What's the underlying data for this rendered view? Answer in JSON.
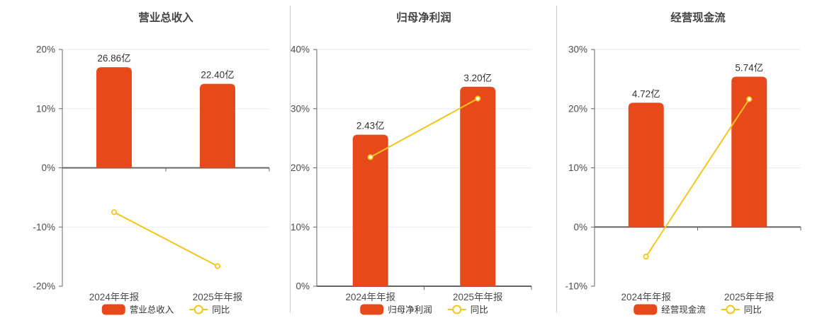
{
  "style": {
    "bar_color": "#E7491B",
    "line_color": "#F5C51D",
    "marker_fill": "#FFFFFF",
    "grid_color": "#E5EAF3",
    "axis_color": "#666666",
    "divider_color": "#CCCCCC",
    "title_color": "#444444",
    "tick_label_color": "#4D4D4D",
    "value_label_color": "#333333",
    "legend_text_color": "#333333",
    "background": "#FFFFFF"
  },
  "chart_data": [
    {
      "type": "combo",
      "title": "营业总收入",
      "categories": [
        "2024年年报",
        "2025年年报"
      ],
      "series": [
        {
          "name": "营业总收入",
          "type": "bar",
          "unit": "亿",
          "values": [
            26.86,
            22.4
          ],
          "labels": [
            "26.86亿",
            "22.40亿"
          ],
          "bar_display_pct": [
            17.0,
            14.2
          ]
        },
        {
          "name": "同比",
          "type": "line",
          "unit": "%",
          "values": [
            -7.5,
            -16.6
          ]
        }
      ],
      "ylim": [
        -20,
        20
      ],
      "ytick_step": 10,
      "ytick_labels": [
        "-20%",
        "-10%",
        "0%",
        "10%",
        "20%"
      ],
      "grid": true,
      "legend_position": "bottom"
    },
    {
      "type": "combo",
      "title": "归母净利润",
      "categories": [
        "2024年年报",
        "2025年年报"
      ],
      "series": [
        {
          "name": "归母净利润",
          "type": "bar",
          "unit": "亿",
          "values": [
            2.43,
            3.2
          ],
          "labels": [
            "2.43亿",
            "3.20亿"
          ],
          "bar_display_pct": [
            25.6,
            33.7
          ]
        },
        {
          "name": "同比",
          "type": "line",
          "unit": "%",
          "values": [
            21.8,
            31.7
          ]
        }
      ],
      "ylim": [
        0,
        40
      ],
      "ytick_step": 10,
      "ytick_labels": [
        "0%",
        "10%",
        "20%",
        "30%",
        "40%"
      ],
      "grid": true,
      "legend_position": "bottom"
    },
    {
      "type": "combo",
      "title": "经营现金流",
      "categories": [
        "2024年年报",
        "2025年年报"
      ],
      "series": [
        {
          "name": "经营现金流",
          "type": "bar",
          "unit": "亿",
          "values": [
            4.72,
            5.74
          ],
          "labels": [
            "4.72亿",
            "5.74亿"
          ],
          "bar_display_pct": [
            21.0,
            25.4
          ]
        },
        {
          "name": "同比",
          "type": "line",
          "unit": "%",
          "values": [
            -5.0,
            21.6
          ]
        }
      ],
      "ylim": [
        -10,
        30
      ],
      "ytick_step": 10,
      "ytick_labels": [
        "-10%",
        "0%",
        "10%",
        "20%",
        "30%"
      ],
      "grid": true,
      "legend_position": "bottom"
    }
  ]
}
